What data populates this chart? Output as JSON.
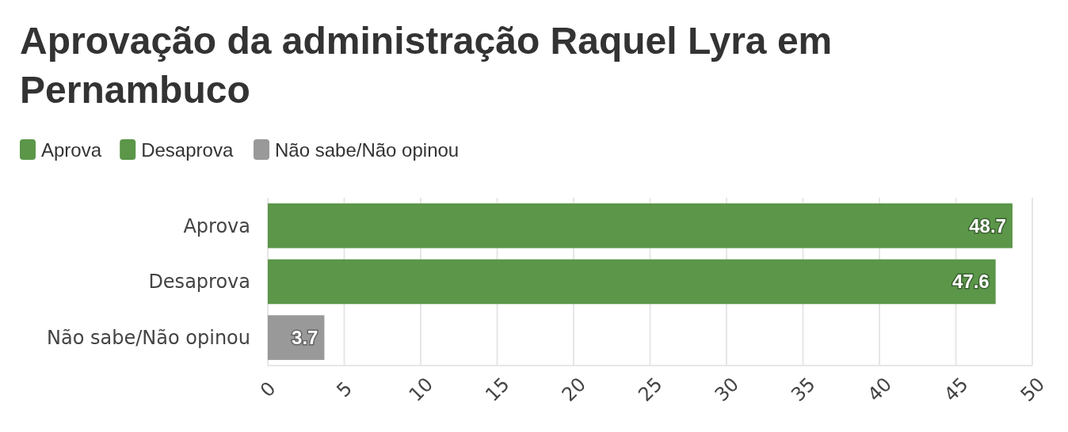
{
  "chart_data": {
    "type": "bar",
    "orientation": "horizontal",
    "stacked": true,
    "title": "Aprovação da administração Raquel Lyra em Pernambuco",
    "categories": [
      "Aprova",
      "Desaprova",
      "Não sabe/Não opinou"
    ],
    "series": [
      {
        "name": "Aprova",
        "color": "#5b9649",
        "values": [
          48.7,
          null,
          null
        ]
      },
      {
        "name": "Desaprova",
        "color": "#5b9649",
        "values": [
          null,
          47.6,
          null
        ]
      },
      {
        "name": "Não sabe/Não opinou",
        "color": "#999999",
        "values": [
          null,
          null,
          3.7
        ]
      }
    ],
    "xlim": [
      0,
      50
    ],
    "xticks": [
      0,
      5,
      10,
      15,
      20,
      25,
      30,
      35,
      40,
      45,
      50
    ],
    "grid": "x",
    "legend": "top left",
    "data_labels": true
  }
}
